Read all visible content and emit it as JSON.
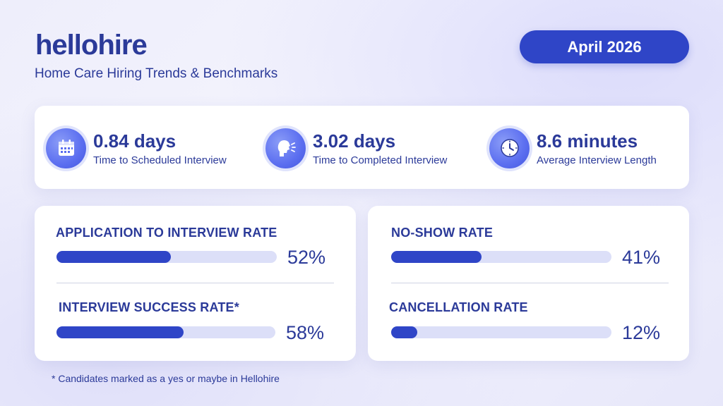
{
  "brand": {
    "logo_part1": "hello",
    "logo_part2": "hire",
    "subtitle": "Home Care Hiring Trends & Benchmarks"
  },
  "date_label": "April 2026",
  "stats": [
    {
      "value": "0.84 days",
      "label": "Time to Scheduled Interview",
      "icon": "calendar-icon"
    },
    {
      "value": "3.02 days",
      "label": "Time to Completed Interview",
      "icon": "speaking-head-icon"
    },
    {
      "value": "8.6 minutes",
      "label": "Average Interview Length",
      "icon": "clock-icon"
    }
  ],
  "metrics": [
    {
      "title": "APPLICATION TO INTERVIEW RATE",
      "value": "52%",
      "fraction": 0.52
    },
    {
      "title": "INTERVIEW SUCCESS RATE*",
      "value": "58%",
      "fraction": 0.58
    },
    {
      "title": "NO-SHOW RATE",
      "value": "41%",
      "fraction": 0.41
    },
    {
      "title": "CANCELLATION RATE",
      "value": "12%",
      "fraction": 0.12
    }
  ],
  "footnote": "* Candidates marked as a yes or maybe in Hellohire",
  "colors": {
    "accent": "#2f45c7",
    "text": "#2b3a99",
    "track": "#dcdff8",
    "icon": "#5b6ef0"
  }
}
